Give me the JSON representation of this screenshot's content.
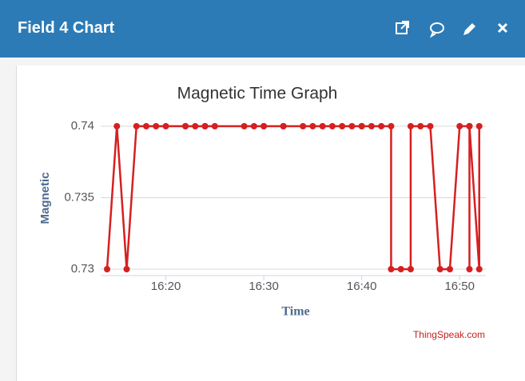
{
  "header": {
    "title": "Field 4 Chart"
  },
  "chart_data": {
    "type": "line",
    "title": "Magnetic Time Graph",
    "xlabel": "Time",
    "ylabel": "Magnetic",
    "credits": "ThingSpeak.com",
    "x": [
      "16:14",
      "16:15",
      "16:16",
      "16:17",
      "16:18",
      "16:19",
      "16:20",
      "16:22",
      "16:22",
      "16:23",
      "16:24",
      "16:24",
      "16:25",
      "16:28",
      "16:29",
      "16:30",
      "16:30",
      "16:32",
      "16:32",
      "16:34",
      "16:35",
      "16:36",
      "16:37",
      "16:38",
      "16:39",
      "16:40",
      "16:40",
      "16:41",
      "16:42",
      "16:43",
      "16:43",
      "16:44",
      "16:45",
      "16:45",
      "16:46",
      "16:47",
      "16:48",
      "16:49",
      "16:50",
      "16:51",
      "16:51",
      "16:51",
      "16:52",
      "16:52"
    ],
    "series": [
      {
        "name": "Magnetic",
        "color": "#d62020",
        "values": [
          0.73,
          0.74,
          0.73,
          0.74,
          0.74,
          0.74,
          0.74,
          0.74,
          0.74,
          0.74,
          0.74,
          0.74,
          0.74,
          0.74,
          0.74,
          0.74,
          0.74,
          0.74,
          0.74,
          0.74,
          0.74,
          0.74,
          0.74,
          0.74,
          0.74,
          0.74,
          0.74,
          0.74,
          0.74,
          0.74,
          0.73,
          0.73,
          0.73,
          0.74,
          0.74,
          0.74,
          0.73,
          0.73,
          0.74,
          0.74,
          0.73,
          0.74,
          0.73,
          0.74
        ]
      }
    ],
    "xlim": [
      "16:14",
      "16:53"
    ],
    "xticks": [
      "16:20",
      "16:30",
      "16:40",
      "16:50"
    ],
    "ylim": [
      0.73,
      0.74
    ],
    "yticks": [
      0.73,
      0.735,
      0.74
    ],
    "grid": true
  }
}
